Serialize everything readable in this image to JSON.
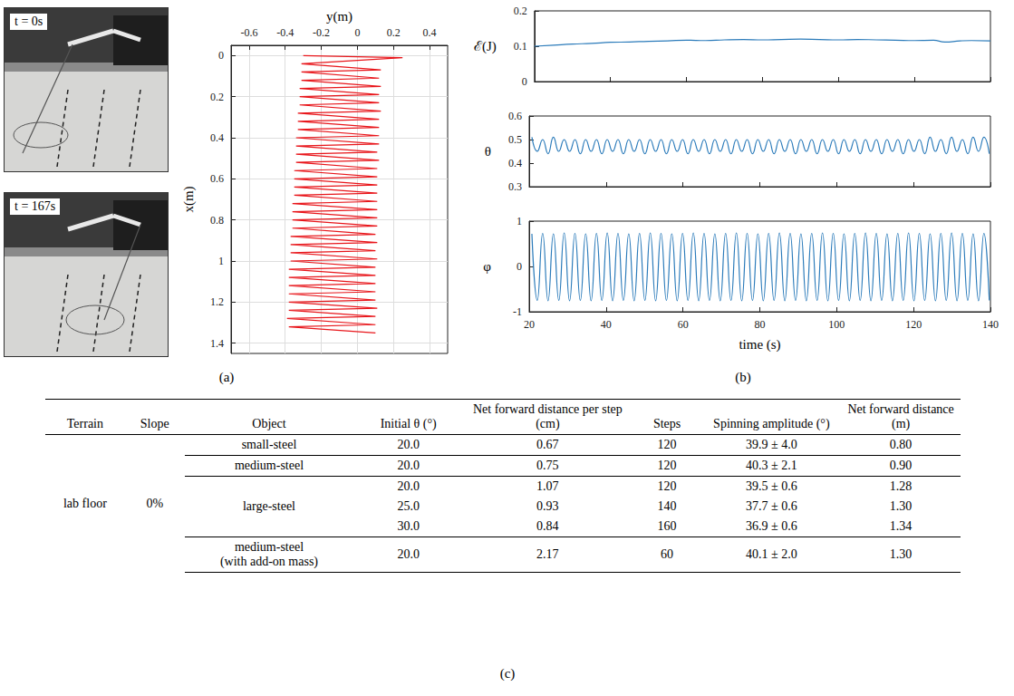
{
  "panel_labels": [
    "(a)",
    "(b)",
    "(c)"
  ],
  "photos": [
    {
      "label": "t = 0s"
    },
    {
      "label": "t = 167s"
    }
  ],
  "chart_data": [
    {
      "type": "line",
      "x_label": "y(m)",
      "y_label": "x(m)",
      "xlim": [
        -0.7,
        0.5
      ],
      "xticks": [
        -0.6,
        -0.4,
        -0.2,
        0,
        0.2,
        0.4
      ],
      "ylim": [
        1.45,
        -0.05
      ],
      "yticks": [
        0,
        0.2,
        0.4,
        0.6,
        0.8,
        1,
        1.2,
        1.4
      ],
      "grid": true,
      "color": "#e8161b",
      "x": [
        -0.3,
        0.25,
        -0.31,
        0.13,
        -0.31,
        0.12,
        -0.31,
        0.13,
        -0.32,
        0.12,
        -0.32,
        0.12,
        -0.32,
        0.13,
        -0.33,
        0.12,
        -0.33,
        0.12,
        -0.33,
        0.12,
        -0.34,
        0.12,
        -0.34,
        0.11,
        -0.34,
        0.12,
        -0.34,
        0.11,
        -0.35,
        0.11,
        -0.35,
        0.11,
        -0.35,
        0.11,
        -0.35,
        0.11,
        -0.36,
        0.11,
        -0.36,
        0.11,
        -0.36,
        0.11,
        -0.36,
        0.1,
        -0.37,
        0.11,
        -0.37,
        0.1,
        -0.37,
        0.11,
        -0.37,
        0.1,
        -0.38,
        0.1,
        -0.38,
        0.1,
        -0.38,
        0.1,
        -0.38,
        0.1,
        -0.38,
        0.11,
        -0.38,
        0.1,
        -0.39,
        0.1,
        -0.38,
        0.1
      ],
      "values": [
        0.0,
        0.01,
        0.04,
        0.07,
        0.08,
        0.11,
        0.12,
        0.15,
        0.16,
        0.19,
        0.2,
        0.23,
        0.24,
        0.27,
        0.28,
        0.31,
        0.32,
        0.35,
        0.36,
        0.39,
        0.4,
        0.43,
        0.44,
        0.47,
        0.48,
        0.51,
        0.52,
        0.55,
        0.56,
        0.59,
        0.6,
        0.63,
        0.64,
        0.67,
        0.68,
        0.71,
        0.72,
        0.75,
        0.76,
        0.79,
        0.8,
        0.83,
        0.84,
        0.87,
        0.88,
        0.91,
        0.92,
        0.95,
        0.96,
        0.99,
        1.0,
        1.03,
        1.04,
        1.07,
        1.08,
        1.11,
        1.12,
        1.15,
        1.16,
        1.19,
        1.2,
        1.23,
        1.24,
        1.27,
        1.28,
        1.31,
        1.32,
        1.35
      ]
    },
    {
      "type": "line",
      "y_label": "ℰ(J)",
      "xlim": [
        20,
        140
      ],
      "xticks": [
        20,
        40,
        60,
        80,
        100,
        120,
        140
      ],
      "ylim": [
        0,
        0.2
      ],
      "yticks": [
        0,
        0.1,
        0.2
      ],
      "grid": false,
      "tick_labels": "y",
      "color": "#2b7bba",
      "x": [
        20,
        25,
        30,
        35,
        40,
        45,
        50,
        55,
        60,
        65,
        70,
        75,
        80,
        85,
        90,
        95,
        100,
        105,
        110,
        115,
        120,
        125,
        128,
        132,
        135,
        140
      ],
      "values": [
        0.1,
        0.103,
        0.106,
        0.108,
        0.111,
        0.112,
        0.114,
        0.115,
        0.117,
        0.116,
        0.118,
        0.119,
        0.118,
        0.119,
        0.12,
        0.119,
        0.118,
        0.119,
        0.118,
        0.117,
        0.116,
        0.117,
        0.112,
        0.115,
        0.116,
        0.115
      ]
    },
    {
      "type": "line",
      "y_label": "θ",
      "xlim": [
        20,
        140
      ],
      "xticks": [
        20,
        40,
        60,
        80,
        100,
        120,
        140
      ],
      "ylim": [
        0.3,
        0.6
      ],
      "yticks": [
        0.3,
        0.4,
        0.5,
        0.6
      ],
      "grid": false,
      "tick_labels": "y",
      "color": "#2b7bba",
      "x": [
        20.7,
        22.1,
        23.5,
        24.9,
        26.3,
        27.7,
        29.1,
        30.5,
        31.9,
        33.3,
        34.7,
        36.1,
        37.5,
        38.9,
        40.3,
        41.7,
        43.1,
        44.5,
        45.9,
        47.3,
        48.7,
        50.1,
        51.5,
        52.9,
        54.3,
        55.7,
        57.1,
        58.5,
        59.9,
        61.3,
        62.7,
        64.1,
        65.5,
        66.9,
        68.3,
        69.7,
        71.1,
        72.5,
        73.9,
        75.3,
        76.7,
        78.1,
        79.5,
        80.9,
        82.3,
        83.7,
        85.1,
        86.5,
        87.9,
        89.3,
        90.7,
        92.1,
        93.5,
        94.9,
        96.3,
        97.7,
        99.1,
        100.5,
        101.9,
        103.3,
        104.7,
        106.1,
        107.5,
        108.9,
        110.3,
        111.7,
        113.1,
        114.5,
        115.9,
        117.3,
        118.7,
        120.1,
        121.5,
        122.9,
        124.3,
        125.7,
        127.1,
        128.5,
        129.9,
        131.3,
        132.7,
        134.1,
        135.5,
        136.9,
        138.3,
        139.7
      ],
      "values": [
        0.51,
        0.45,
        0.5,
        0.44,
        0.51,
        0.45,
        0.5,
        0.45,
        0.5,
        0.44,
        0.5,
        0.45,
        0.5,
        0.44,
        0.5,
        0.45,
        0.5,
        0.44,
        0.5,
        0.45,
        0.5,
        0.44,
        0.5,
        0.45,
        0.5,
        0.44,
        0.5,
        0.45,
        0.5,
        0.44,
        0.5,
        0.45,
        0.5,
        0.44,
        0.5,
        0.45,
        0.5,
        0.44,
        0.5,
        0.45,
        0.5,
        0.44,
        0.5,
        0.45,
        0.5,
        0.44,
        0.5,
        0.45,
        0.5,
        0.44,
        0.5,
        0.45,
        0.5,
        0.44,
        0.5,
        0.45,
        0.5,
        0.44,
        0.5,
        0.45,
        0.5,
        0.44,
        0.5,
        0.45,
        0.5,
        0.44,
        0.5,
        0.45,
        0.5,
        0.44,
        0.5,
        0.45,
        0.5,
        0.44,
        0.51,
        0.45,
        0.5,
        0.44,
        0.51,
        0.45,
        0.5,
        0.44,
        0.51,
        0.45,
        0.51,
        0.44
      ]
    },
    {
      "type": "line",
      "x_label": "time (s)",
      "y_label": "φ",
      "xlim": [
        20,
        140
      ],
      "xticks": [
        20,
        40,
        60,
        80,
        100,
        120,
        140
      ],
      "ylim": [
        -1,
        1
      ],
      "yticks": [
        -1,
        0,
        1
      ],
      "grid": false,
      "color": "#2b7bba",
      "x": [
        20.7,
        22.1,
        23.5,
        24.9,
        26.3,
        27.7,
        29.1,
        30.5,
        31.9,
        33.3,
        34.7,
        36.1,
        37.5,
        38.9,
        40.3,
        41.7,
        43.1,
        44.5,
        45.9,
        47.3,
        48.7,
        50.1,
        51.5,
        52.9,
        54.3,
        55.7,
        57.1,
        58.5,
        59.9,
        61.3,
        62.7,
        64.1,
        65.5,
        66.9,
        68.3,
        69.7,
        71.1,
        72.5,
        73.9,
        75.3,
        76.7,
        78.1,
        79.5,
        80.9,
        82.3,
        83.7,
        85.1,
        86.5,
        87.9,
        89.3,
        90.7,
        92.1,
        93.5,
        94.9,
        96.3,
        97.7,
        99.1,
        100.5,
        101.9,
        103.3,
        104.7,
        106.1,
        107.5,
        108.9,
        110.3,
        111.7,
        113.1,
        114.5,
        115.9,
        117.3,
        118.7,
        120.1,
        121.5,
        122.9,
        124.3,
        125.7,
        127.1,
        128.5,
        129.9,
        131.3,
        132.7,
        134.1,
        135.5,
        136.9,
        138.3,
        139.7
      ],
      "values": [
        0.72,
        -0.75,
        0.73,
        -0.76,
        0.72,
        -0.75,
        0.74,
        -0.76,
        0.73,
        -0.75,
        0.72,
        -0.76,
        0.73,
        -0.75,
        0.74,
        -0.76,
        0.73,
        -0.75,
        0.72,
        -0.76,
        0.73,
        -0.75,
        0.74,
        -0.76,
        0.73,
        -0.75,
        0.72,
        -0.76,
        0.73,
        -0.75,
        0.74,
        -0.76,
        0.73,
        -0.75,
        0.72,
        -0.76,
        0.73,
        -0.75,
        0.74,
        -0.76,
        0.73,
        -0.75,
        0.72,
        -0.76,
        0.73,
        -0.75,
        0.74,
        -0.76,
        0.73,
        -0.75,
        0.72,
        -0.76,
        0.73,
        -0.75,
        0.74,
        -0.76,
        0.73,
        -0.75,
        0.72,
        -0.76,
        0.73,
        -0.75,
        0.74,
        -0.76,
        0.73,
        -0.75,
        0.72,
        -0.76,
        0.73,
        -0.75,
        0.74,
        -0.76,
        0.73,
        -0.75,
        0.72,
        -0.76,
        0.73,
        -0.75,
        0.74,
        -0.76,
        0.73,
        -0.75,
        0.72,
        -0.76,
        0.73,
        -0.75
      ]
    }
  ],
  "table": {
    "columns": [
      "Terrain",
      "Slope",
      "Object",
      "Initial θ (°)",
      "Net forward distance per step (cm)",
      "Steps",
      "Spinning amplitude (°)",
      "Net forward distance (m)"
    ],
    "terrain": "lab floor",
    "slope": "0%",
    "groups": [
      {
        "object": "small-steel",
        "rows": [
          [
            "20.0",
            "0.67",
            "120",
            "39.9 ± 4.0",
            "0.80"
          ]
        ]
      },
      {
        "object": "medium-steel",
        "rows": [
          [
            "20.0",
            "0.75",
            "120",
            "40.3 ± 2.1",
            "0.90"
          ]
        ]
      },
      {
        "object": "large-steel",
        "rows": [
          [
            "20.0",
            "1.07",
            "120",
            "39.5 ± 0.6",
            "1.28"
          ],
          [
            "25.0",
            "0.93",
            "140",
            "37.7 ± 0.6",
            "1.30"
          ],
          [
            "30.0",
            "0.84",
            "160",
            "36.9 ± 0.6",
            "1.34"
          ]
        ]
      },
      {
        "object": "medium-steel (with add-on mass)",
        "rows": [
          [
            "20.0",
            "2.17",
            "60",
            "40.1 ± 2.0",
            "1.30"
          ]
        ]
      }
    ]
  }
}
